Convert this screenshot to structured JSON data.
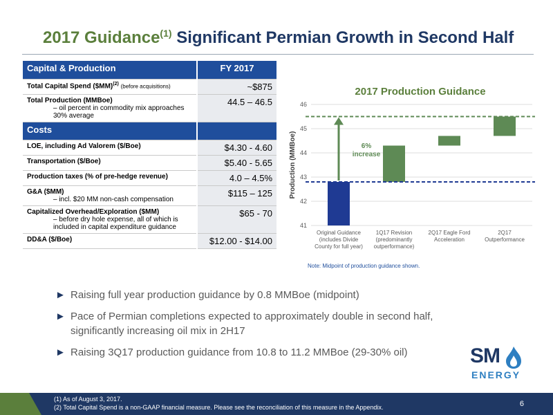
{
  "title": {
    "main": "2017 Guidance",
    "sup": "(1)",
    "rest": "Significant Permian Growth in Second Half"
  },
  "table": {
    "header1": {
      "label": "Capital & Production",
      "value": "FY 2017"
    },
    "rows1": [
      {
        "label": "Total Capital Spend ($MM)",
        "sup": "(2)",
        "extra": "(before acquisitions)",
        "value": "~$875"
      },
      {
        "label": "Total Production (MMBoe)",
        "sub": "– oil percent in commodity mix approaches 30% average",
        "value": "44.5 – 46.5"
      }
    ],
    "header2": {
      "label": "Costs"
    },
    "rows2": [
      {
        "label": "LOE, including Ad Valorem ($/Boe)",
        "value": "$4.30 - 4.60"
      },
      {
        "label": "Transportation ($/Boe)",
        "value": "$5.40 - 5.65"
      },
      {
        "label": "Production taxes (% of pre-hedge revenue)",
        "value": "4.0 – 4.5%"
      },
      {
        "label": "G&A ($MM)",
        "sub": "– incl. $20 MM non-cash compensation",
        "value": "$115 – 125"
      },
      {
        "label": "Capitalized Overhead/Exploration ($MM)",
        "sub": "– before dry hole expense, all of which is included in capital expenditure guidance",
        "value": "$65 - 70"
      },
      {
        "label": "DD&A ($/Boe)",
        "value": "$12.00 - $14.00"
      }
    ]
  },
  "chart_data": {
    "type": "bar",
    "title": "2017 Production Guidance",
    "ylabel": "Production (MMBoe)",
    "ylim": [
      41,
      46
    ],
    "yticks": [
      "41",
      "42",
      "43",
      "44",
      "45",
      "46"
    ],
    "categories": [
      "Original Guidance (includes Divide County for full year)",
      "1Q17 Revision (predominantly outperformance)",
      "2Q17 Eagle Ford Acceleration",
      "2Q17 Outperformance"
    ],
    "category_lines": [
      [
        "Original Guidance",
        "(includes Divide",
        "County for full year)"
      ],
      [
        "1Q17 Revision",
        "(predominantly",
        "outperformance)"
      ],
      [
        "2Q17 Eagle Ford",
        "Acceleration"
      ],
      [
        "2Q17",
        "Outperformance"
      ]
    ],
    "bars": [
      {
        "start": 41.0,
        "end": 42.8,
        "color": "#1f3a93"
      },
      {
        "start": 42.8,
        "end": 44.3,
        "color": "#5e8a55"
      },
      {
        "start": 44.3,
        "end": 44.7,
        "color": "#5e8a55"
      },
      {
        "start": 44.7,
        "end": 45.5,
        "color": "#5e8a55"
      }
    ],
    "ref_lines": [
      {
        "value": 42.8,
        "color": "#1f3a93"
      },
      {
        "value": 45.5,
        "color": "#5e8a55"
      }
    ],
    "annotation": {
      "line1": "6%",
      "line2": "increase"
    },
    "grid": true
  },
  "note": "Note: Midpoint of production guidance shown.",
  "bullets": [
    "Raising full year production guidance by 0.8 MMBoe (midpoint)",
    "Pace of Permian completions expected to approximately double in second half, significantly increasing oil mix in 2H17",
    "Raising 3Q17 production guidance from 10.8 to 11.2 MMBoe (29-30% oil)"
  ],
  "bullet_glyph": "►",
  "logo": {
    "sm": "SM",
    "energy": "ENERGY"
  },
  "footnotes": [
    "(1)   As of August 3, 2017.",
    "(2)   Total Capital Spend is a non-GAAP financial measure. Please see the reconciliation of this measure in the Appendix."
  ],
  "page_number": "6",
  "colors": {
    "green": "#5b7f3c",
    "navy": "#1f3864",
    "blue": "#1f4e9c"
  }
}
